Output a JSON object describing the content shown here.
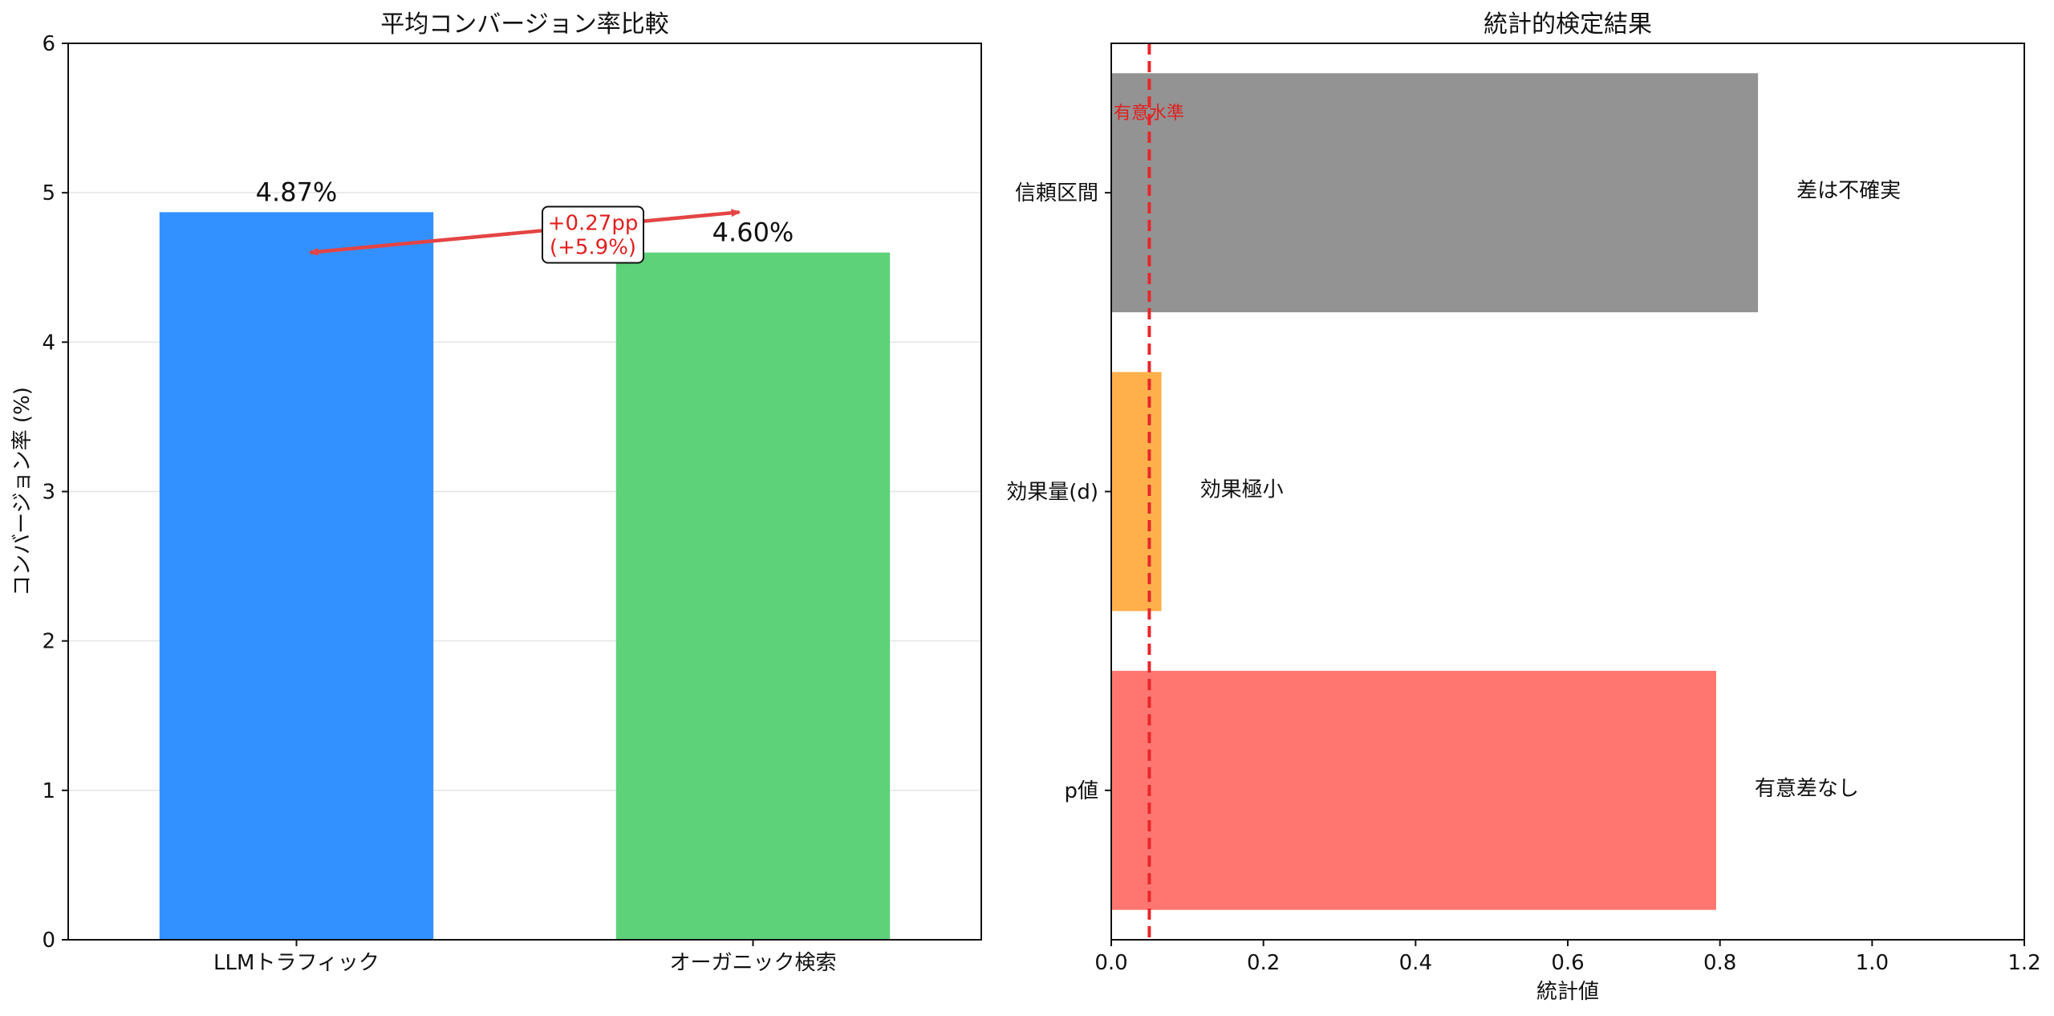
{
  "chart_data": [
    {
      "type": "bar",
      "title": "平均コンバージョン率比較",
      "xlabel": "",
      "ylabel": "コンバージョン率 (%)",
      "ylim": [
        0,
        6
      ],
      "yticks": [
        0,
        1,
        2,
        3,
        4,
        5,
        6
      ],
      "categories": [
        "LLMトラフィック",
        "オーガニック検索"
      ],
      "values": [
        4.87,
        4.6
      ],
      "value_labels": [
        "4.87%",
        "4.60%"
      ],
      "colors": [
        "#3391ff",
        "#5dd279"
      ],
      "grid": "horizontal",
      "annotation": {
        "lines": [
          "+0.27pp",
          "(+5.9%)"
        ],
        "color": "#e0201f",
        "arrow_color": "#e44444"
      }
    },
    {
      "type": "bar",
      "orientation": "horizontal",
      "title": "統計的検定結果",
      "xlabel": "統計値",
      "ylabel": "",
      "xlim": [
        0,
        1.2
      ],
      "xticks": [
        0.0,
        0.2,
        0.4,
        0.6,
        0.8,
        1.0,
        1.2
      ],
      "xtick_labels": [
        "0.0",
        "0.2",
        "0.4",
        "0.6",
        "0.8",
        "1.0",
        "1.2"
      ],
      "categories": [
        "p値",
        "効果量(d)",
        "信頼区間"
      ],
      "values": [
        0.795,
        0.066,
        0.85
      ],
      "colors": [
        "#ff7670",
        "#ffb04b",
        "#939393"
      ],
      "bar_notes": [
        "有意差なし",
        "効果極小",
        "差は不確実"
      ],
      "reference_line": {
        "x": 0.05,
        "label": "有意水準",
        "color": "#e8262b"
      }
    }
  ]
}
